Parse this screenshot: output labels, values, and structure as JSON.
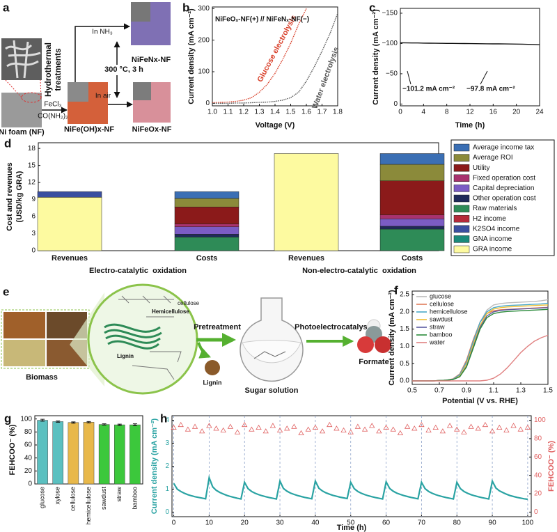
{
  "figure_panels": [
    {
      "label": "a",
      "ni_foam": "Ni foam (NF)",
      "treatment": [
        "Hydrothermal",
        "treatments"
      ],
      "reagents": [
        "FeCl₃",
        "CO(NH₂)₂"
      ],
      "precursor": "NiFe(OH)x-NF",
      "nitridation": "In NH₃",
      "condition": "300 °C, 3 h",
      "oxidation": "In air",
      "nitride": "NiFeNx-NF",
      "oxide": "NiFeOx-NF"
    },
    {
      "label": "e",
      "biomass": "Biomass",
      "components": [
        "cellulose",
        "Hemicellulose",
        "Lignin"
      ],
      "step1": "Pretreatment",
      "byproduct": "Lignin",
      "intermediate": "Sugar solution",
      "step2": "Photoelectrocatalysis",
      "product": "Formate"
    }
  ],
  "chart_data": [
    {
      "type": "line",
      "label": "b",
      "xlabel": "Voltage (V)",
      "ylabel": "Current density (mA cm⁻²)",
      "annotations": [
        "NiFeOₓ-NF(+) // NiFeNₓ-NF(−)"
      ],
      "line_style": "dotted",
      "x": [
        1.0,
        1.05,
        1.1,
        1.15,
        1.2,
        1.25,
        1.3,
        1.35,
        1.4,
        1.45,
        1.5,
        1.55,
        1.6,
        1.65,
        1.7,
        1.75,
        1.8
      ],
      "series": [
        {
          "name": "Glucose electrolysis",
          "color": "#d9412b",
          "values": [
            2,
            3,
            4,
            6,
            10,
            18,
            35,
            60,
            95,
            140,
            190,
            250,
            300,
            null,
            null,
            null,
            null
          ]
        },
        {
          "name": "Water electrolysis",
          "color": "#555555",
          "values": [
            0,
            0,
            0,
            1,
            1,
            2,
            3,
            4,
            6,
            10,
            18,
            35,
            70,
            115,
            165,
            220,
            285
          ]
        }
      ],
      "xlim": [
        1.0,
        1.8
      ],
      "xticks": [
        {
          "value": 1.0,
          "label": "1.0"
        },
        1.1,
        1.2,
        1.3,
        1.4,
        1.5,
        1.6,
        1.7,
        1.8
      ],
      "ylim": [
        -8,
        305
      ],
      "yticks": [
        0,
        100,
        200,
        300
      ]
    },
    {
      "type": "line",
      "label": "c",
      "xlabel": "Time (h)",
      "ylabel": "Current density (mA cm⁻²)",
      "annotations": [
        "−101.2 mA cm⁻²",
        "−97.8 mA cm⁻²"
      ],
      "x": [
        0,
        1,
        2,
        3,
        4,
        5,
        6,
        7,
        8,
        9,
        10,
        11,
        12,
        13,
        14,
        15,
        16,
        17,
        18,
        19,
        20,
        21,
        22,
        23,
        24
      ],
      "series": [
        {
          "color": "#111111",
          "values": [
            -101.2,
            -101,
            -100.8,
            -100.9,
            -100.6,
            -100.5,
            -100.4,
            -100.3,
            -100.2,
            -100.1,
            -100,
            -99.9,
            -99.8,
            -99.7,
            -99.6,
            -99.5,
            -99.4,
            -99.3,
            -99.2,
            -99.1,
            -99,
            -98.9,
            -98.5,
            -98.3,
            -97.8
          ]
        }
      ],
      "xlim": [
        0,
        24
      ],
      "xticks": [
        0,
        4,
        8,
        12,
        16,
        20,
        24
      ],
      "ylim": [
        3,
        -158
      ],
      "yticks": [
        {
          "value": -150,
          "label": "−150"
        },
        {
          "value": -100,
          "label": "−100"
        },
        {
          "value": -50,
          "label": "−50"
        },
        0
      ]
    },
    {
      "type": "stacked_bar",
      "label": "d",
      "ylabel": [
        "Cost and revenues",
        "(USD/kg GRA)"
      ],
      "categories": [
        "Revenues",
        "Costs",
        "Revenues",
        "Costs"
      ],
      "groups": [
        "Electro-catalytic  oxidation",
        "Non-electro-catalytic  oxidation"
      ],
      "series": [
        {
          "name": "Average income tax",
          "color": "#3b6fb4",
          "values": [
            0,
            1.2,
            0,
            1.9
          ]
        },
        {
          "name": "Average ROI",
          "color": "#8b8a3a",
          "values": [
            0,
            1.5,
            0,
            2.9
          ]
        },
        {
          "name": "Utility",
          "color": "#8b1a1a",
          "values": [
            0,
            3.0,
            0,
            6.0
          ]
        },
        {
          "name": "Fixed operation cost",
          "color": "#a8326e",
          "values": [
            0,
            0.5,
            0,
            0.7
          ]
        },
        {
          "name": "Capital depreciation",
          "color": "#7b5cc4",
          "values": [
            0,
            1.3,
            0,
            1.3
          ]
        },
        {
          "name": "Other operation cost",
          "color": "#1f2a5a",
          "values": [
            0,
            0.5,
            0,
            0.5
          ]
        },
        {
          "name": "Raw materials",
          "color": "#2e8b57",
          "values": [
            0,
            2.4,
            0,
            3.8
          ]
        },
        {
          "name": "H2 income",
          "color": "#b52a3a",
          "values": [
            0,
            0,
            0,
            0
          ]
        },
        {
          "name": "K2SO4 income",
          "color": "#3a4fa0",
          "values": [
            1.0,
            0,
            0,
            0
          ]
        },
        {
          "name": "GNA income",
          "color": "#1a8a7a",
          "values": [
            0,
            0,
            0,
            0
          ]
        },
        {
          "name": "GRA income",
          "color": "#fdfaa0",
          "values": [
            9.4,
            0,
            17.1,
            0
          ]
        }
      ],
      "ylim": [
        0,
        19
      ],
      "yticks": [
        0,
        3,
        6,
        9,
        12,
        15,
        18
      ],
      "legend": "right"
    },
    {
      "type": "line",
      "label": "f",
      "xlabel": "Potential (V vs. RHE)",
      "ylabel": "Current density (mA cm⁻²)",
      "legend": "upper left",
      "x": [
        0.5,
        0.55,
        0.6,
        0.65,
        0.7,
        0.75,
        0.8,
        0.85,
        0.9,
        0.95,
        1.0,
        1.05,
        1.1,
        1.15,
        1.2,
        1.25,
        1.3,
        1.35,
        1.4,
        1.45,
        1.5
      ],
      "series": [
        {
          "name": "glucose",
          "color": "#bbbbbb",
          "values": [
            0,
            0,
            0,
            0,
            0.01,
            0.02,
            0.05,
            0.15,
            0.5,
            1.1,
            1.7,
            2.05,
            2.2,
            2.24,
            2.26,
            2.27,
            2.28,
            2.29,
            2.3,
            2.32,
            2.35
          ]
        },
        {
          "name": "cellulose",
          "color": "#e07b5a",
          "values": [
            0,
            0,
            0,
            0,
            0.01,
            0.02,
            0.06,
            0.2,
            0.6,
            1.2,
            1.7,
            1.95,
            2.03,
            2.06,
            2.07,
            2.08,
            2.09,
            2.1,
            2.11,
            2.12,
            2.13
          ]
        },
        {
          "name": "hemicellulose",
          "color": "#4aa8c8",
          "values": [
            0,
            0,
            0,
            0,
            0.01,
            0.02,
            0.05,
            0.18,
            0.55,
            1.15,
            1.7,
            2.0,
            2.12,
            2.16,
            2.18,
            2.19,
            2.2,
            2.21,
            2.22,
            2.23,
            2.25
          ]
        },
        {
          "name": "sawdust",
          "color": "#f0c030",
          "values": [
            0,
            0,
            0,
            0,
            0.01,
            0.02,
            0.04,
            0.14,
            0.48,
            1.05,
            1.6,
            1.95,
            2.08,
            2.12,
            2.14,
            2.15,
            2.16,
            2.17,
            2.18,
            2.19,
            2.2
          ]
        },
        {
          "name": "straw",
          "color": "#5a5aa0",
          "values": [
            0,
            0,
            0,
            0,
            0.01,
            0.02,
            0.04,
            0.12,
            0.42,
            0.98,
            1.55,
            1.88,
            2.0,
            2.04,
            2.06,
            2.07,
            2.08,
            2.09,
            2.1,
            2.11,
            2.12
          ]
        },
        {
          "name": "bamboo",
          "color": "#2a8a3a",
          "values": [
            0,
            0,
            0,
            0,
            0.01,
            0.02,
            0.04,
            0.12,
            0.4,
            0.95,
            1.5,
            1.83,
            1.95,
            1.99,
            2.01,
            2.02,
            2.03,
            2.04,
            2.05,
            2.06,
            2.07
          ]
        },
        {
          "name": "water",
          "color": "#e08080",
          "values": [
            0,
            0,
            0,
            0,
            0,
            0,
            0,
            0,
            0,
            0,
            0,
            0.02,
            0.08,
            0.2,
            0.38,
            0.6,
            0.82,
            1.0,
            1.15,
            1.25,
            1.32
          ]
        }
      ],
      "xlim": [
        0.5,
        1.5
      ],
      "xticks": [
        0.5,
        0.7,
        0.9,
        1.1,
        1.3,
        1.5
      ],
      "ylim": [
        -0.1,
        2.6
      ],
      "yticks": [
        {
          "value": 0,
          "label": "0.0"
        },
        0.5,
        {
          "value": 1,
          "label": "1.0"
        },
        1.5,
        {
          "value": 2,
          "label": "2.0"
        },
        2.5
      ]
    },
    {
      "type": "bar",
      "label": "g",
      "ylabel": "FEHCOO⁻ (%)",
      "categories": [
        "glucose",
        "xylose",
        "cellulose",
        "hemicellulose",
        "sawdust",
        "straw",
        "bamboo"
      ],
      "values": [
        98,
        96,
        94.5,
        95,
        91.5,
        91,
        91
      ],
      "errors": [
        1.5,
        1,
        1,
        1,
        1,
        1,
        1.5
      ],
      "colors": [
        "#5bc0c0",
        "#5bc0c0",
        "#e8b84a",
        "#e8b84a",
        "#3cc83c",
        "#3cc83c",
        "#3cc83c"
      ],
      "ylim": [
        0,
        105
      ],
      "yticks": [
        0,
        20,
        40,
        60,
        80,
        100
      ]
    },
    {
      "type": "line",
      "label": "h",
      "xlabel": "Time (h)",
      "ylabel": "Current density (mA cm⁻²)",
      "y2label": "FEHCOO⁻ (%)",
      "xgrid": "dashed",
      "x": [
        0,
        1,
        2,
        3,
        4,
        5,
        6,
        7,
        8,
        9,
        10,
        11,
        12,
        13,
        14,
        15,
        16,
        17,
        18,
        19,
        20,
        21,
        22,
        23,
        24,
        25,
        26,
        27,
        28,
        29,
        30,
        31,
        32,
        33,
        34,
        35,
        36,
        37,
        38,
        39,
        40,
        41,
        42,
        43,
        44,
        45,
        46,
        47,
        48,
        49,
        50,
        51,
        52,
        53,
        54,
        55,
        56,
        57,
        58,
        59,
        60,
        61,
        62,
        63,
        64,
        65,
        66,
        67,
        68,
        69,
        70,
        71,
        72,
        73,
        74,
        75,
        76,
        77,
        78,
        79,
        80,
        81,
        82,
        83,
        84,
        85,
        86,
        87,
        88,
        89,
        90,
        91,
        92,
        93,
        94,
        95,
        96,
        97,
        98,
        99,
        100
      ],
      "series": [
        {
          "color": "#2aa3a3",
          "values": [
            1.25,
            1.0,
            0.9,
            0.82,
            0.76,
            0.71,
            0.67,
            0.64,
            0.61,
            0.58,
            1.5,
            1.1,
            0.95,
            0.86,
            0.79,
            0.73,
            0.68,
            0.64,
            0.6,
            0.57,
            1.3,
            1.02,
            0.9,
            0.82,
            0.76,
            0.71,
            0.67,
            0.63,
            0.6,
            0.57,
            1.35,
            1.03,
            0.91,
            0.83,
            0.77,
            0.72,
            0.68,
            0.64,
            0.61,
            0.58,
            1.35,
            1.04,
            0.92,
            0.84,
            0.78,
            0.73,
            0.69,
            0.65,
            0.62,
            0.59,
            1.3,
            1.02,
            0.9,
            0.82,
            0.76,
            0.71,
            0.67,
            0.63,
            0.6,
            0.57,
            1.32,
            1.03,
            0.91,
            0.83,
            0.77,
            0.72,
            0.68,
            0.64,
            0.61,
            0.58,
            1.3,
            1.02,
            0.9,
            0.82,
            0.76,
            0.71,
            0.67,
            0.63,
            0.6,
            0.57,
            1.3,
            1.02,
            0.9,
            0.82,
            0.76,
            0.71,
            0.67,
            0.63,
            0.6,
            0.57,
            1.35,
            1.05,
            0.93,
            0.85,
            0.78,
            0.72,
            0.68,
            0.64,
            0.61,
            0.58,
            0.56
          ]
        },
        {
          "color": "#e06060",
          "axis": "y2",
          "marker": "triangle",
          "x": [
            0,
            2,
            4,
            6,
            8,
            10,
            12,
            14,
            16,
            18,
            20,
            22,
            24,
            26,
            28,
            30,
            32,
            34,
            36,
            38,
            40,
            42,
            44,
            46,
            48,
            50,
            52,
            54,
            56,
            58,
            60,
            62,
            64,
            66,
            68,
            70,
            72,
            74,
            76,
            78,
            80,
            82,
            84,
            86,
            88,
            90,
            92,
            94,
            96,
            98,
            100
          ],
          "values": [
            92,
            95,
            90,
            93,
            88,
            94,
            91,
            89,
            93,
            87,
            95,
            90,
            92,
            88,
            94,
            89,
            91,
            93,
            86,
            90,
            92,
            88,
            95,
            91,
            89,
            87,
            93,
            90,
            94,
            88,
            92,
            90,
            86,
            93,
            91,
            95,
            89,
            92,
            88,
            94,
            90,
            87,
            93,
            91,
            95,
            88,
            92,
            89,
            94,
            90,
            92
          ]
        }
      ],
      "xlim": [
        -0.5,
        101
      ],
      "xticks": [
        0,
        10,
        20,
        30,
        40,
        50,
        60,
        70,
        80,
        90,
        100
      ],
      "ylim": [
        -0.2,
        4.2
      ],
      "yticks": [
        0,
        1,
        2,
        3,
        4
      ],
      "y2lim": [
        -5,
        105
      ],
      "y2ticks": [
        0,
        20,
        40,
        60,
        80,
        100
      ]
    }
  ]
}
